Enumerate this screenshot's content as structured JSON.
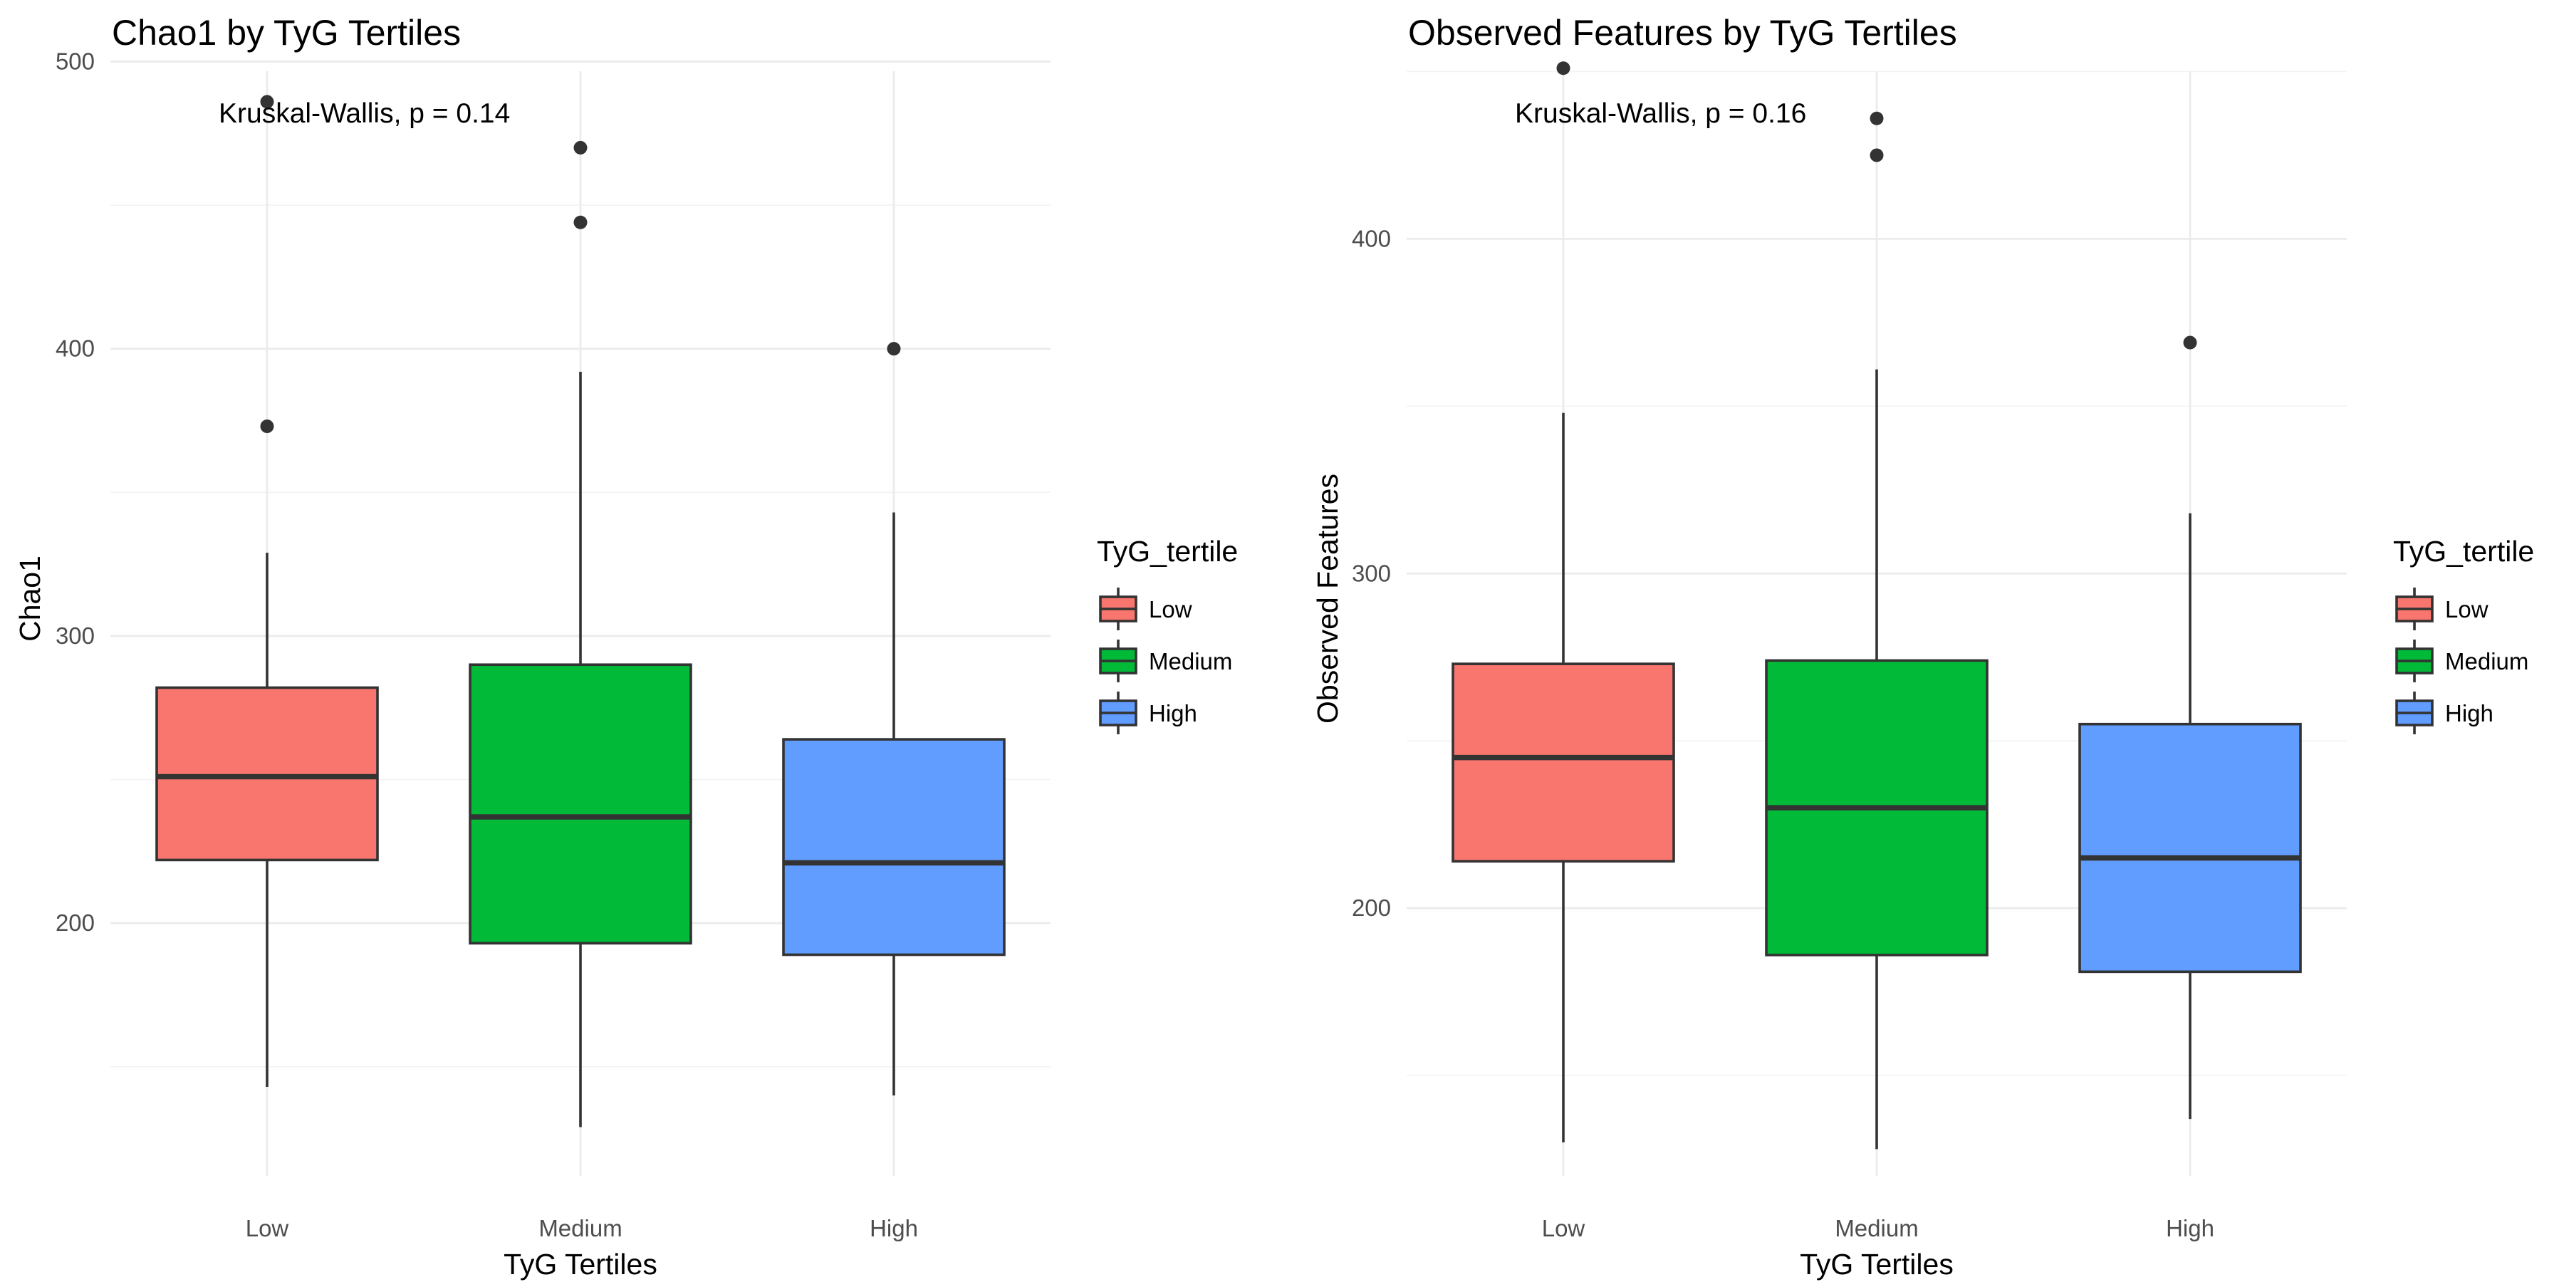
{
  "chart_data": [
    {
      "type": "boxplot",
      "title": "Chao1 by TyG Tertiles",
      "xlabel": "TyG Tertiles",
      "ylabel": "Chao1",
      "categories": [
        "Low",
        "Medium",
        "High"
      ],
      "ylim": [
        112,
        514
      ],
      "y_ticks": [
        200,
        300,
        400,
        500
      ],
      "grid": true,
      "annotation": "Kruskal-Wallis, p = 0.14",
      "legend": {
        "title": "TyG_tertile",
        "position": "right",
        "entries": [
          "Low",
          "Medium",
          "High"
        ]
      },
      "boxes": [
        {
          "category": "Low",
          "whisker_low": 143,
          "q1": 222,
          "median": 251,
          "q3": 282,
          "whisker_high": 329,
          "outliers": [
            373,
            486
          ]
        },
        {
          "category": "Medium",
          "whisker_low": 129,
          "q1": 193,
          "median": 237,
          "q3": 290,
          "whisker_high": 392,
          "outliers": [
            444,
            470
          ]
        },
        {
          "category": "High",
          "whisker_low": 140,
          "q1": 189,
          "median": 221,
          "q3": 264,
          "whisker_high": 343,
          "outliers": [
            400
          ]
        }
      ]
    },
    {
      "type": "boxplot",
      "title": "Observed Features by TyG Tertiles",
      "xlabel": "TyG Tertiles",
      "ylabel": "Observed Features",
      "categories": [
        "Low",
        "Medium",
        "High"
      ],
      "ylim": [
        120,
        465
      ],
      "y_ticks": [
        200,
        300,
        400
      ],
      "grid": true,
      "annotation": "Kruskal-Wallis, p = 0.16",
      "legend": {
        "title": "TyG_tertile",
        "position": "right",
        "entries": [
          "Low",
          "Medium",
          "High"
        ]
      },
      "boxes": [
        {
          "category": "Low",
          "whisker_low": 130,
          "q1": 214,
          "median": 245,
          "q3": 273,
          "whisker_high": 348,
          "outliers": [
            451
          ]
        },
        {
          "category": "Medium",
          "whisker_low": 128,
          "q1": 186,
          "median": 230,
          "q3": 274,
          "whisker_high": 361,
          "outliers": [
            425,
            436
          ]
        },
        {
          "category": "High",
          "whisker_low": 137,
          "q1": 181,
          "median": 215,
          "q3": 255,
          "whisker_high": 318,
          "outliers": [
            369
          ]
        }
      ]
    }
  ],
  "colors": {
    "Low": "#F8766D",
    "Medium": "#00BA38",
    "High": "#619CFF"
  }
}
